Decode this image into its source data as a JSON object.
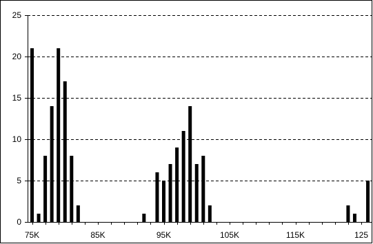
{
  "chart_data": {
    "type": "bar",
    "title": "",
    "xlabel": "",
    "ylabel": "",
    "ylim": [
      0,
      25
    ],
    "y_ticks": [
      "0",
      "5",
      "10",
      "15",
      "20",
      "25"
    ],
    "x_tick_labels": [
      "75K",
      "85K",
      "95K",
      "105K",
      "115K",
      "125"
    ],
    "grid": "dashed horizontal",
    "legend": "none",
    "bar_color": "#000000",
    "bars": [
      {
        "x": 75,
        "value": 21
      },
      {
        "x": 76,
        "value": 1
      },
      {
        "x": 77,
        "value": 8
      },
      {
        "x": 78,
        "value": 14
      },
      {
        "x": 79,
        "value": 21
      },
      {
        "x": 80,
        "value": 17
      },
      {
        "x": 81,
        "value": 8
      },
      {
        "x": 82,
        "value": 2
      },
      {
        "x": 92,
        "value": 1
      },
      {
        "x": 94,
        "value": 6
      },
      {
        "x": 95,
        "value": 5
      },
      {
        "x": 96,
        "value": 7
      },
      {
        "x": 97,
        "value": 9
      },
      {
        "x": 98,
        "value": 11
      },
      {
        "x": 99,
        "value": 14
      },
      {
        "x": 100,
        "value": 7
      },
      {
        "x": 101,
        "value": 8
      },
      {
        "x": 102,
        "value": 2
      },
      {
        "x": 123,
        "value": 2
      },
      {
        "x": 124,
        "value": 1
      },
      {
        "x": 126,
        "value": 5
      }
    ]
  }
}
